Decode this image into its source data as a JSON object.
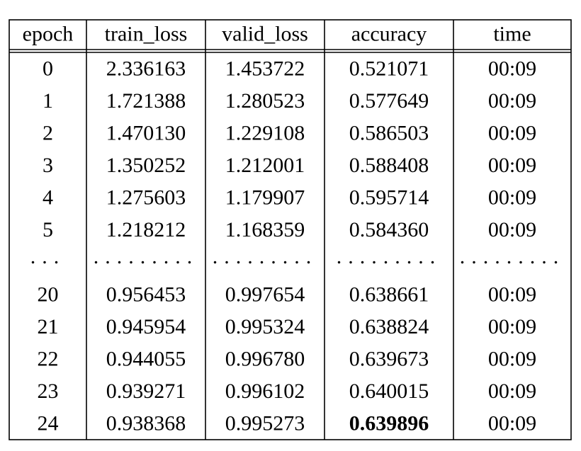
{
  "table": {
    "header": [
      "epoch",
      "train_loss",
      "valid_loss",
      "accuracy",
      "time"
    ],
    "rows": [
      [
        "0",
        "2.336163",
        "1.453722",
        "0.521071",
        "00:09"
      ],
      [
        "1",
        "1.721388",
        "1.280523",
        "0.577649",
        "00:09"
      ],
      [
        "2",
        "1.470130",
        "1.229108",
        "0.586503",
        "00:09"
      ],
      [
        "3",
        "1.350252",
        "1.212001",
        "0.588408",
        "00:09"
      ],
      [
        "4",
        "1.275603",
        "1.179907",
        "0.595714",
        "00:09"
      ],
      [
        "5",
        "1.218212",
        "1.168359",
        "0.584360",
        "00:09"
      ],
      [
        "...",
        ".........",
        ".........",
        ".........",
        "........."
      ],
      [
        "20",
        "0.956453",
        "0.997654",
        "0.638661",
        "00:09"
      ],
      [
        "21",
        "0.945954",
        "0.995324",
        "0.638824",
        "00:09"
      ],
      [
        "22",
        "0.944055",
        "0.996780",
        "0.639673",
        "00:09"
      ],
      [
        "23",
        "0.939271",
        "0.996102",
        "0.640015",
        "00:09"
      ],
      [
        "24",
        "0.938368",
        "0.995273",
        "0.639896",
        "00:09"
      ]
    ]
  }
}
